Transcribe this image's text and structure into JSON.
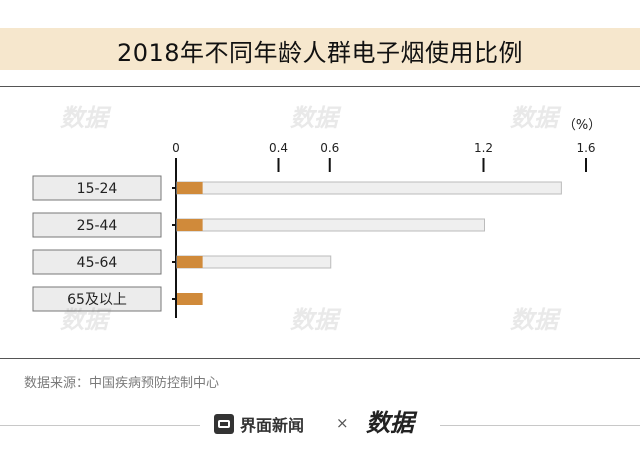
{
  "title": "2018年不同年龄人群电子烟使用比例",
  "source": "数据来源：中国疾病预防控制中心",
  "footer": {
    "brand": "界面新闻",
    "separator": "×",
    "brand2": "数据"
  },
  "colors": {
    "bar": "#d08a3a",
    "track": "#efefef",
    "title_band": "#f6e7cd"
  },
  "chart_data": {
    "type": "bar",
    "orientation": "horizontal",
    "unit_label": "（%）",
    "categories": [
      "15-24",
      "25-44",
      "45-64",
      "65及以上"
    ],
    "values": [
      0.1,
      0.1,
      0.1,
      0.1
    ],
    "track_values": [
      1.5,
      1.2,
      0.6,
      null
    ],
    "xlim": [
      0,
      1.6
    ],
    "ticks": [
      0,
      0.4,
      0.6,
      1.2,
      1.6
    ],
    "tick_labels": [
      "0",
      "0.4",
      "0.6",
      "1.2",
      "1.6"
    ],
    "grid": false,
    "legend": "none"
  }
}
